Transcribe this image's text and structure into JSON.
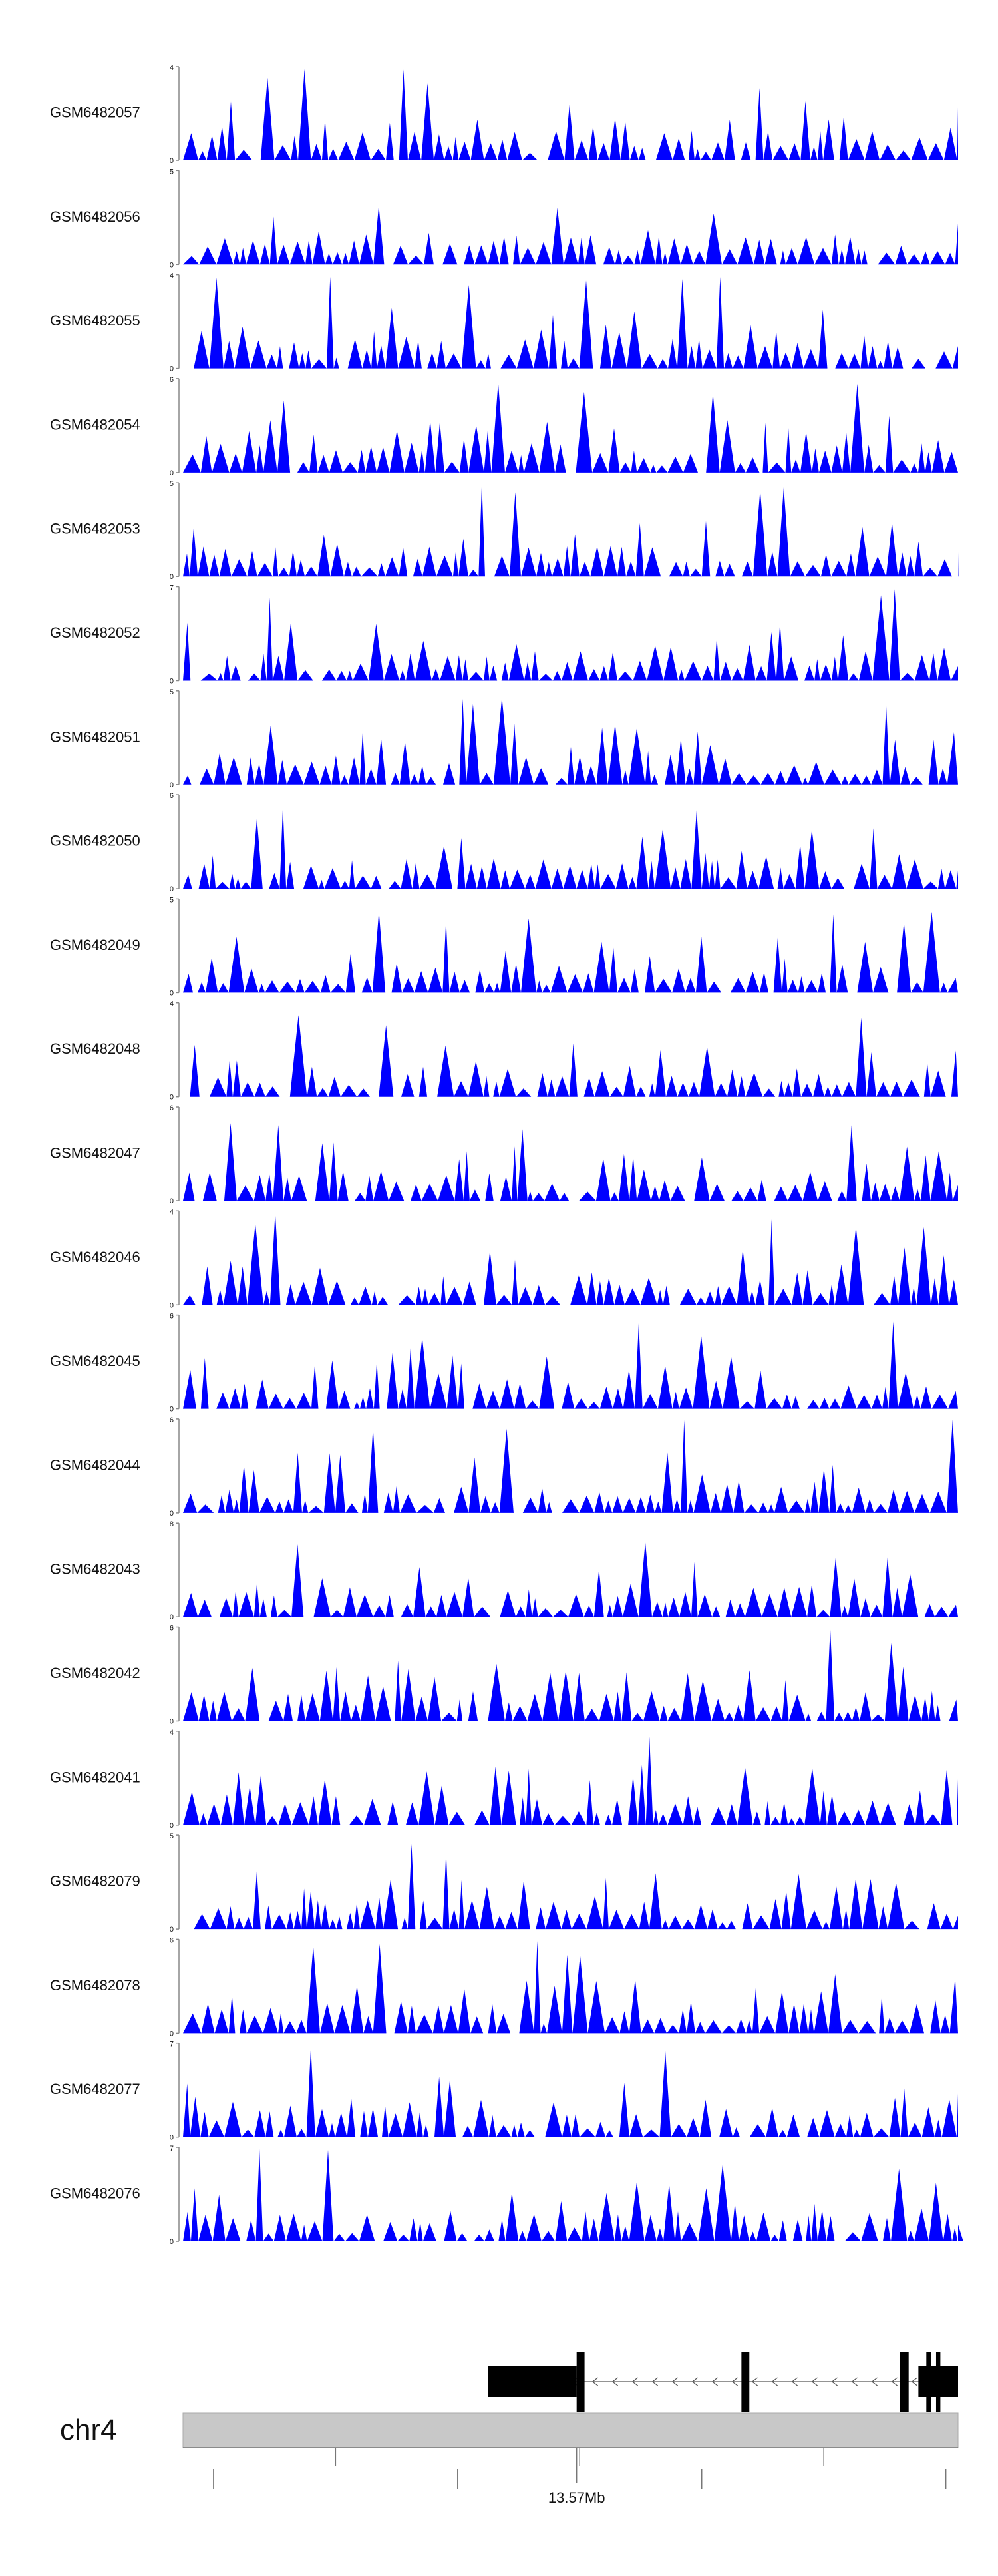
{
  "chart_data": {
    "type": "area",
    "title": "",
    "xlabel": "",
    "ylabel": "",
    "x_domain": [
      13.52,
      13.647
    ],
    "x_unit": "Mb",
    "series": [
      {
        "name": "GSM6482057",
        "ymax": 4,
        "ytick_top": "4",
        "ytick_bottom": "0"
      },
      {
        "name": "GSM6482056",
        "ymax": 5,
        "ytick_top": "5",
        "ytick_bottom": "0"
      },
      {
        "name": "GSM6482055",
        "ymax": 4,
        "ytick_top": "4",
        "ytick_bottom": "0"
      },
      {
        "name": "GSM6482054",
        "ymax": 6,
        "ytick_top": "6",
        "ytick_bottom": "0"
      },
      {
        "name": "GSM6482053",
        "ymax": 5,
        "ytick_top": "5",
        "ytick_bottom": "0"
      },
      {
        "name": "GSM6482052",
        "ymax": 7,
        "ytick_top": "7",
        "ytick_bottom": "0"
      },
      {
        "name": "GSM6482051",
        "ymax": 5,
        "ytick_top": "5",
        "ytick_bottom": "0"
      },
      {
        "name": "GSM6482050",
        "ymax": 6,
        "ytick_top": "6",
        "ytick_bottom": "0"
      },
      {
        "name": "GSM6482049",
        "ymax": 5,
        "ytick_top": "5",
        "ytick_bottom": "0"
      },
      {
        "name": "GSM6482048",
        "ymax": 4,
        "ytick_top": "4",
        "ytick_bottom": "0"
      },
      {
        "name": "GSM6482047",
        "ymax": 6,
        "ytick_top": "6",
        "ytick_bottom": "0"
      },
      {
        "name": "GSM6482046",
        "ymax": 4,
        "ytick_top": "4",
        "ytick_bottom": "0"
      },
      {
        "name": "GSM6482045",
        "ymax": 6,
        "ytick_top": "6",
        "ytick_bottom": "0"
      },
      {
        "name": "GSM6482044",
        "ymax": 6,
        "ytick_top": "6",
        "ytick_bottom": "0"
      },
      {
        "name": "GSM6482043",
        "ymax": 8,
        "ytick_top": "8",
        "ytick_bottom": "0"
      },
      {
        "name": "GSM6482042",
        "ymax": 6,
        "ytick_top": "6",
        "ytick_bottom": "0"
      },
      {
        "name": "GSM6482041",
        "ymax": 4,
        "ytick_top": "4",
        "ytick_bottom": "0"
      },
      {
        "name": "GSM6482079",
        "ymax": 5,
        "ytick_top": "5",
        "ytick_bottom": "0"
      },
      {
        "name": "GSM6482078",
        "ymax": 6,
        "ytick_top": "6",
        "ytick_bottom": "0"
      },
      {
        "name": "GSM6482077",
        "ymax": 7,
        "ytick_top": "7",
        "ytick_bottom": "0"
      },
      {
        "name": "GSM6482076",
        "ymax": 7,
        "ytick_top": "7",
        "ytick_bottom": "0"
      }
    ],
    "gene_model": {
      "strand": "-",
      "utr": [
        [
          13.57,
          13.5845
        ],
        [
          13.6405,
          13.647
        ]
      ],
      "exons": [
        [
          13.5845,
          13.5858
        ],
        [
          13.6115,
          13.6128
        ],
        [
          13.6375,
          13.6389
        ],
        [
          13.6418,
          13.6426
        ],
        [
          13.6434,
          13.6441
        ]
      ],
      "intron_arrow": "<"
    },
    "chromosome": "chr4",
    "axis_ticks": [
      13.525,
      13.545,
      13.565,
      13.585,
      13.605,
      13.625,
      13.645
    ],
    "axis_label": "13.57Mb",
    "axis_label_position": 13.5845,
    "colors": {
      "signal": "#0000ff",
      "ideogram": "#c8c8c8",
      "axis": "#777777",
      "gene": "#000000"
    }
  }
}
